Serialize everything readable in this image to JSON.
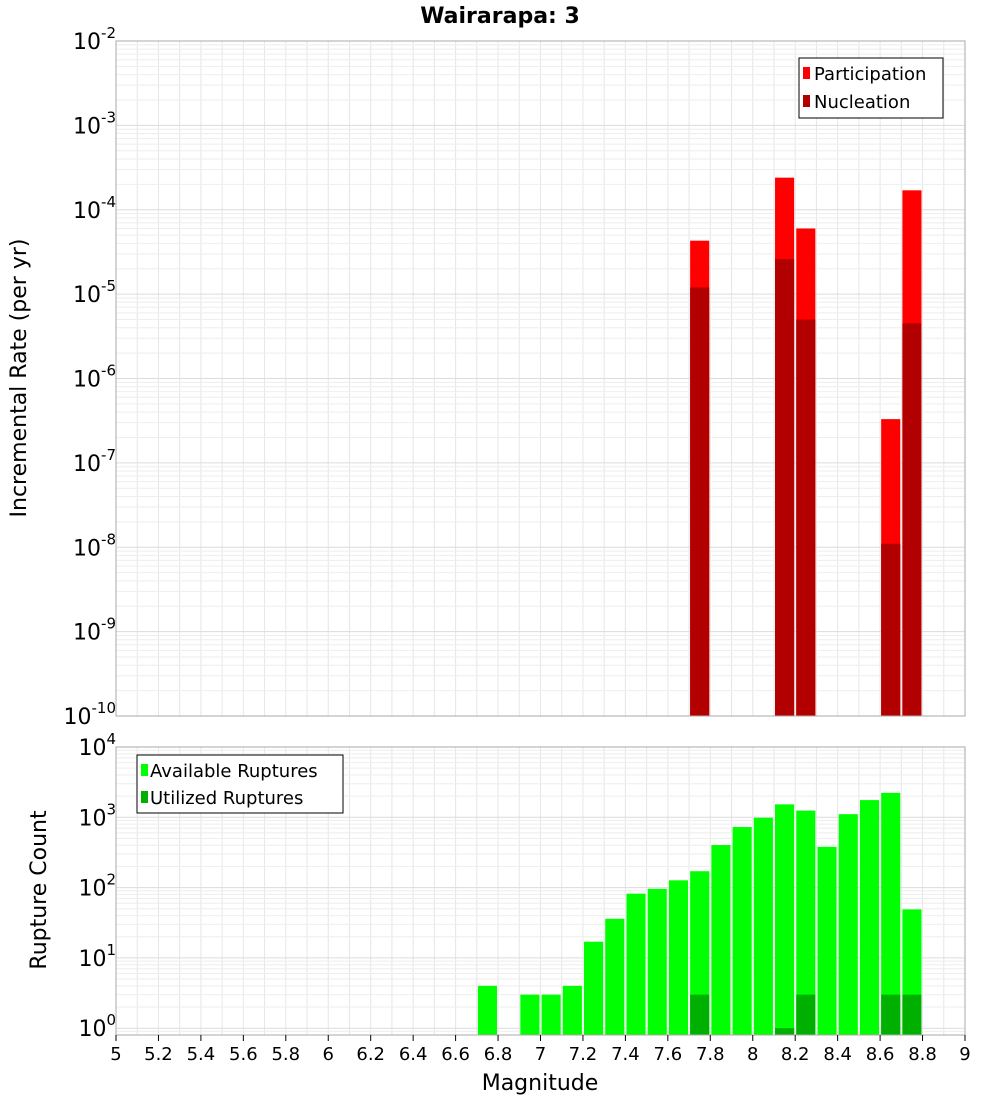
{
  "title": "Wairarapa: 3",
  "colors": {
    "participation": "#ff0000",
    "nucleation": "#b20000",
    "available": "#00ff00",
    "utilized": "#00b000",
    "grid": "#e6e6e6",
    "frame": "#aaaaaa"
  },
  "chart_data": [
    {
      "type": "bar",
      "panel": "top",
      "ylabel": "Incremental Rate (per yr)",
      "yscale": "log",
      "ylim": [
        1e-10,
        0.01
      ],
      "xlim": [
        5,
        9
      ],
      "y_ticks": [
        {
          "base": "10",
          "exp": "-10"
        },
        {
          "base": "10",
          "exp": "-9"
        },
        {
          "base": "10",
          "exp": "-8"
        },
        {
          "base": "10",
          "exp": "-7"
        },
        {
          "base": "10",
          "exp": "-6"
        },
        {
          "base": "10",
          "exp": "-5"
        },
        {
          "base": "10",
          "exp": "-4"
        },
        {
          "base": "10",
          "exp": "-3"
        },
        {
          "base": "10",
          "exp": "-2"
        }
      ],
      "legend": {
        "position": "top-right",
        "entries": [
          "Participation",
          "Nucleation"
        ]
      },
      "series": [
        {
          "name": "Participation",
          "x": [
            7.75,
            8.15,
            8.25,
            8.65,
            8.75
          ],
          "values": [
            4.3e-05,
            0.00024,
            6e-05,
            3.3e-07,
            0.00017
          ]
        },
        {
          "name": "Nucleation",
          "x": [
            7.75,
            8.15,
            8.25,
            8.65,
            8.75
          ],
          "values": [
            1.2e-05,
            2.6e-05,
            5e-06,
            1.1e-08,
            4.5e-06
          ]
        }
      ]
    },
    {
      "type": "bar",
      "panel": "bottom",
      "ylabel": "Rupture Count",
      "xlabel": "Magnitude",
      "yscale": "log",
      "ylim": [
        0.8,
        10000
      ],
      "xlim": [
        5,
        9
      ],
      "y_ticks": [
        {
          "base": "10",
          "exp": "0"
        },
        {
          "base": "10",
          "exp": "1"
        },
        {
          "base": "10",
          "exp": "2"
        },
        {
          "base": "10",
          "exp": "3"
        },
        {
          "base": "10",
          "exp": "4"
        }
      ],
      "x_ticks": [
        "5",
        "5.2",
        "5.4",
        "5.6",
        "5.8",
        "6",
        "6.2",
        "6.4",
        "6.6",
        "6.8",
        "7",
        "7.2",
        "7.4",
        "7.6",
        "7.8",
        "8",
        "8.2",
        "8.4",
        "8.6",
        "8.8",
        "9"
      ],
      "legend": {
        "position": "top-left",
        "entries": [
          "Available Ruptures",
          "Utilized Ruptures"
        ]
      },
      "series": [
        {
          "name": "Available Ruptures",
          "x": [
            6.75,
            6.95,
            7.05,
            7.15,
            7.25,
            7.35,
            7.45,
            7.55,
            7.65,
            7.75,
            7.85,
            7.95,
            8.05,
            8.15,
            8.25,
            8.35,
            8.45,
            8.55,
            8.65,
            8.75
          ],
          "values": [
            4,
            3,
            3,
            4,
            17,
            36,
            82,
            96,
            127,
            171,
            403,
            727,
            985,
            1528,
            1246,
            380,
            1108,
            1757,
            2226,
            49
          ]
        },
        {
          "name": "Utilized Ruptures",
          "x": [
            7.75,
            8.15,
            8.25,
            8.65,
            8.75
          ],
          "values": [
            3,
            1,
            3,
            3,
            3
          ]
        }
      ]
    }
  ]
}
